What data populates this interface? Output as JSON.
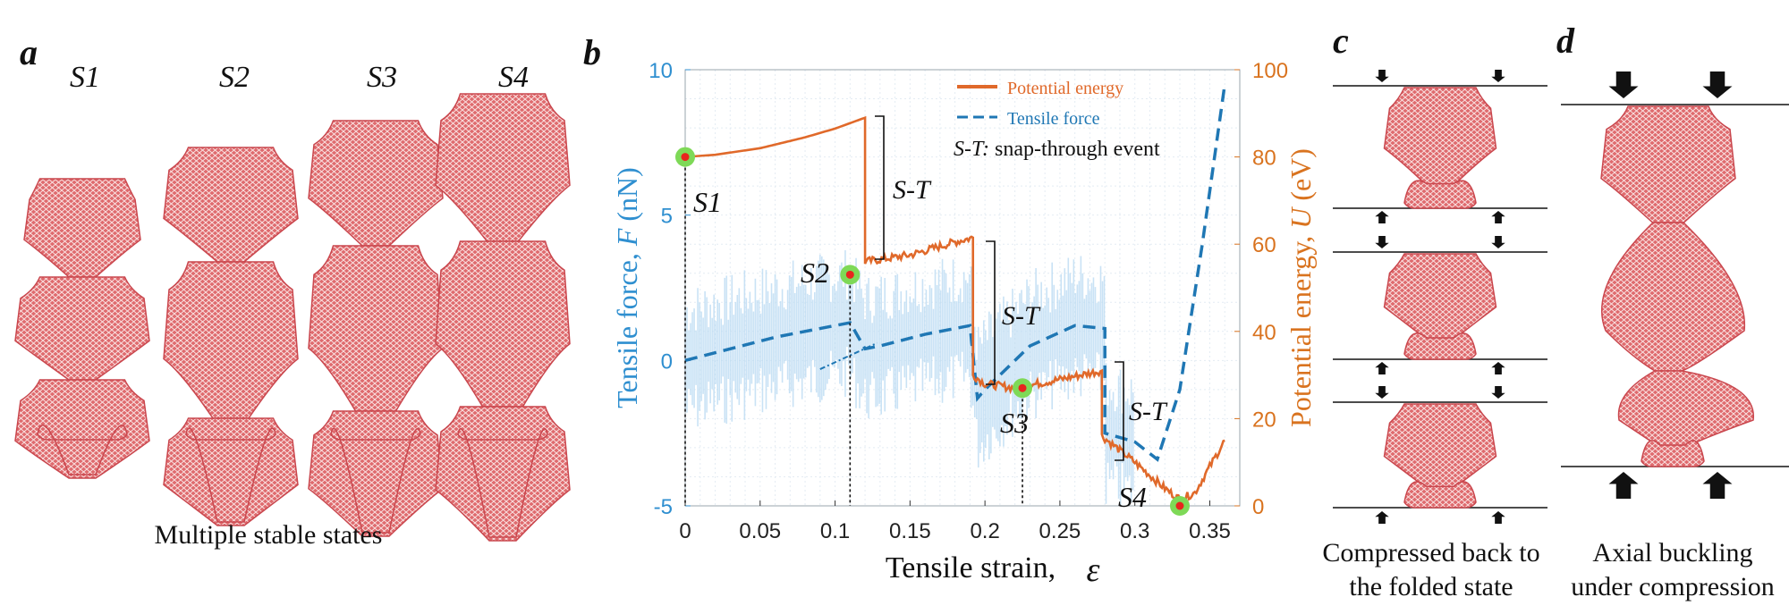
{
  "colors": {
    "tube": "#df6b6e",
    "tube_dark": "#c9464d",
    "energy": "#e0692a",
    "force": "#1f77b4",
    "force_band": "#bcdcf3",
    "marker_ring": "#7ed957",
    "marker_dot": "#e8241e",
    "left_axis": "#2f8fd0",
    "right_axis": "#d9731f"
  },
  "panel_a": {
    "letter": "a",
    "states": [
      "S1",
      "S2",
      "S3",
      "S4"
    ],
    "caption": "Multiple stable states"
  },
  "panel_b": {
    "letter": "b",
    "xlabel_text": "Tensile strain,",
    "xlabel_symbol": "ε",
    "ylabel_left_prefix": "Tensile force, ",
    "ylabel_left_var": "F",
    "ylabel_left_unit": " (nN)",
    "ylabel_right_prefix": "Potential energy, ",
    "ylabel_right_var": "U",
    "ylabel_right_unit": " (eV)",
    "legend": {
      "energy": "Potential energy",
      "force": "Tensile force",
      "note_prefix": "S-T:",
      "note_text": " snap-through event"
    },
    "snap_label": "S-T",
    "state_labels": [
      "S1",
      "S2",
      "S3",
      "S4"
    ]
  },
  "panel_c": {
    "letter": "c",
    "caption_lines": [
      "Compressed back to",
      "the folded state"
    ]
  },
  "panel_d": {
    "letter": "d",
    "caption_lines": [
      "Axial buckling",
      "under compression"
    ]
  },
  "chart_data": {
    "type": "line",
    "xlabel": "Tensile strain, ε",
    "ylabel": "Tensile force, F (nN)",
    "ylabel_right": "Potential energy, U (eV)",
    "xlim": [
      0,
      0.37
    ],
    "ylim": [
      -5,
      10
    ],
    "ylim_right": [
      0,
      100
    ],
    "xticks": [
      0,
      0.05,
      0.1,
      0.15,
      0.2,
      0.25,
      0.3,
      0.35
    ],
    "xtick_labels": [
      "0",
      "0.05",
      "0.1",
      "0.15",
      "0.2",
      "0.25",
      "0.3",
      "0.35"
    ],
    "yticks": [
      -5,
      0,
      5,
      10
    ],
    "ytick_labels": [
      "-5",
      "0",
      "5",
      "10"
    ],
    "yticks_right": [
      0,
      20,
      40,
      60,
      80,
      100
    ],
    "ytick_labels_right": [
      "0",
      "20",
      "40",
      "60",
      "80",
      "100"
    ],
    "grid": true,
    "legend_position": "top-right",
    "series": [
      {
        "name": "Potential energy",
        "axis": "right",
        "style": "solid",
        "x": [
          0,
          0.02,
          0.05,
          0.08,
          0.1,
          0.12,
          0.12,
          0.15,
          0.18,
          0.192,
          0.192,
          0.2,
          0.22,
          0.25,
          0.278,
          0.278,
          0.3,
          0.32,
          0.33,
          0.34,
          0.36
        ],
        "y": [
          80,
          80.5,
          82,
          84.5,
          86.5,
          89,
          56,
          57.5,
          60.5,
          61.5,
          30,
          28,
          27,
          29,
          31,
          16,
          10,
          4,
          1.5,
          3,
          15
        ]
      },
      {
        "name": "Tensile force",
        "axis": "left",
        "style": "dashed",
        "x": [
          0,
          0.03,
          0.06,
          0.09,
          0.11,
          0.12,
          0.13,
          0.16,
          0.19,
          0.195,
          0.2,
          0.23,
          0.26,
          0.28,
          0.28,
          0.3,
          0.315,
          0.33,
          0.345,
          0.36
        ],
        "y": [
          0,
          0.4,
          0.8,
          1.1,
          1.3,
          0.4,
          0.5,
          0.9,
          1.2,
          -1.3,
          -1,
          0.5,
          1.2,
          1.1,
          -2.5,
          -2.8,
          -3.4,
          -1,
          4,
          9.5
        ]
      }
    ],
    "states": [
      {
        "label": "S1",
        "x": 0,
        "energy": 80
      },
      {
        "label": "S2",
        "x": 0.11,
        "energy": 53
      },
      {
        "label": "S3",
        "x": 0.225,
        "energy": 27
      },
      {
        "label": "S4",
        "x": 0.33,
        "energy": 0
      }
    ],
    "snap_through_strain": [
      0.12,
      0.192,
      0.278
    ]
  }
}
